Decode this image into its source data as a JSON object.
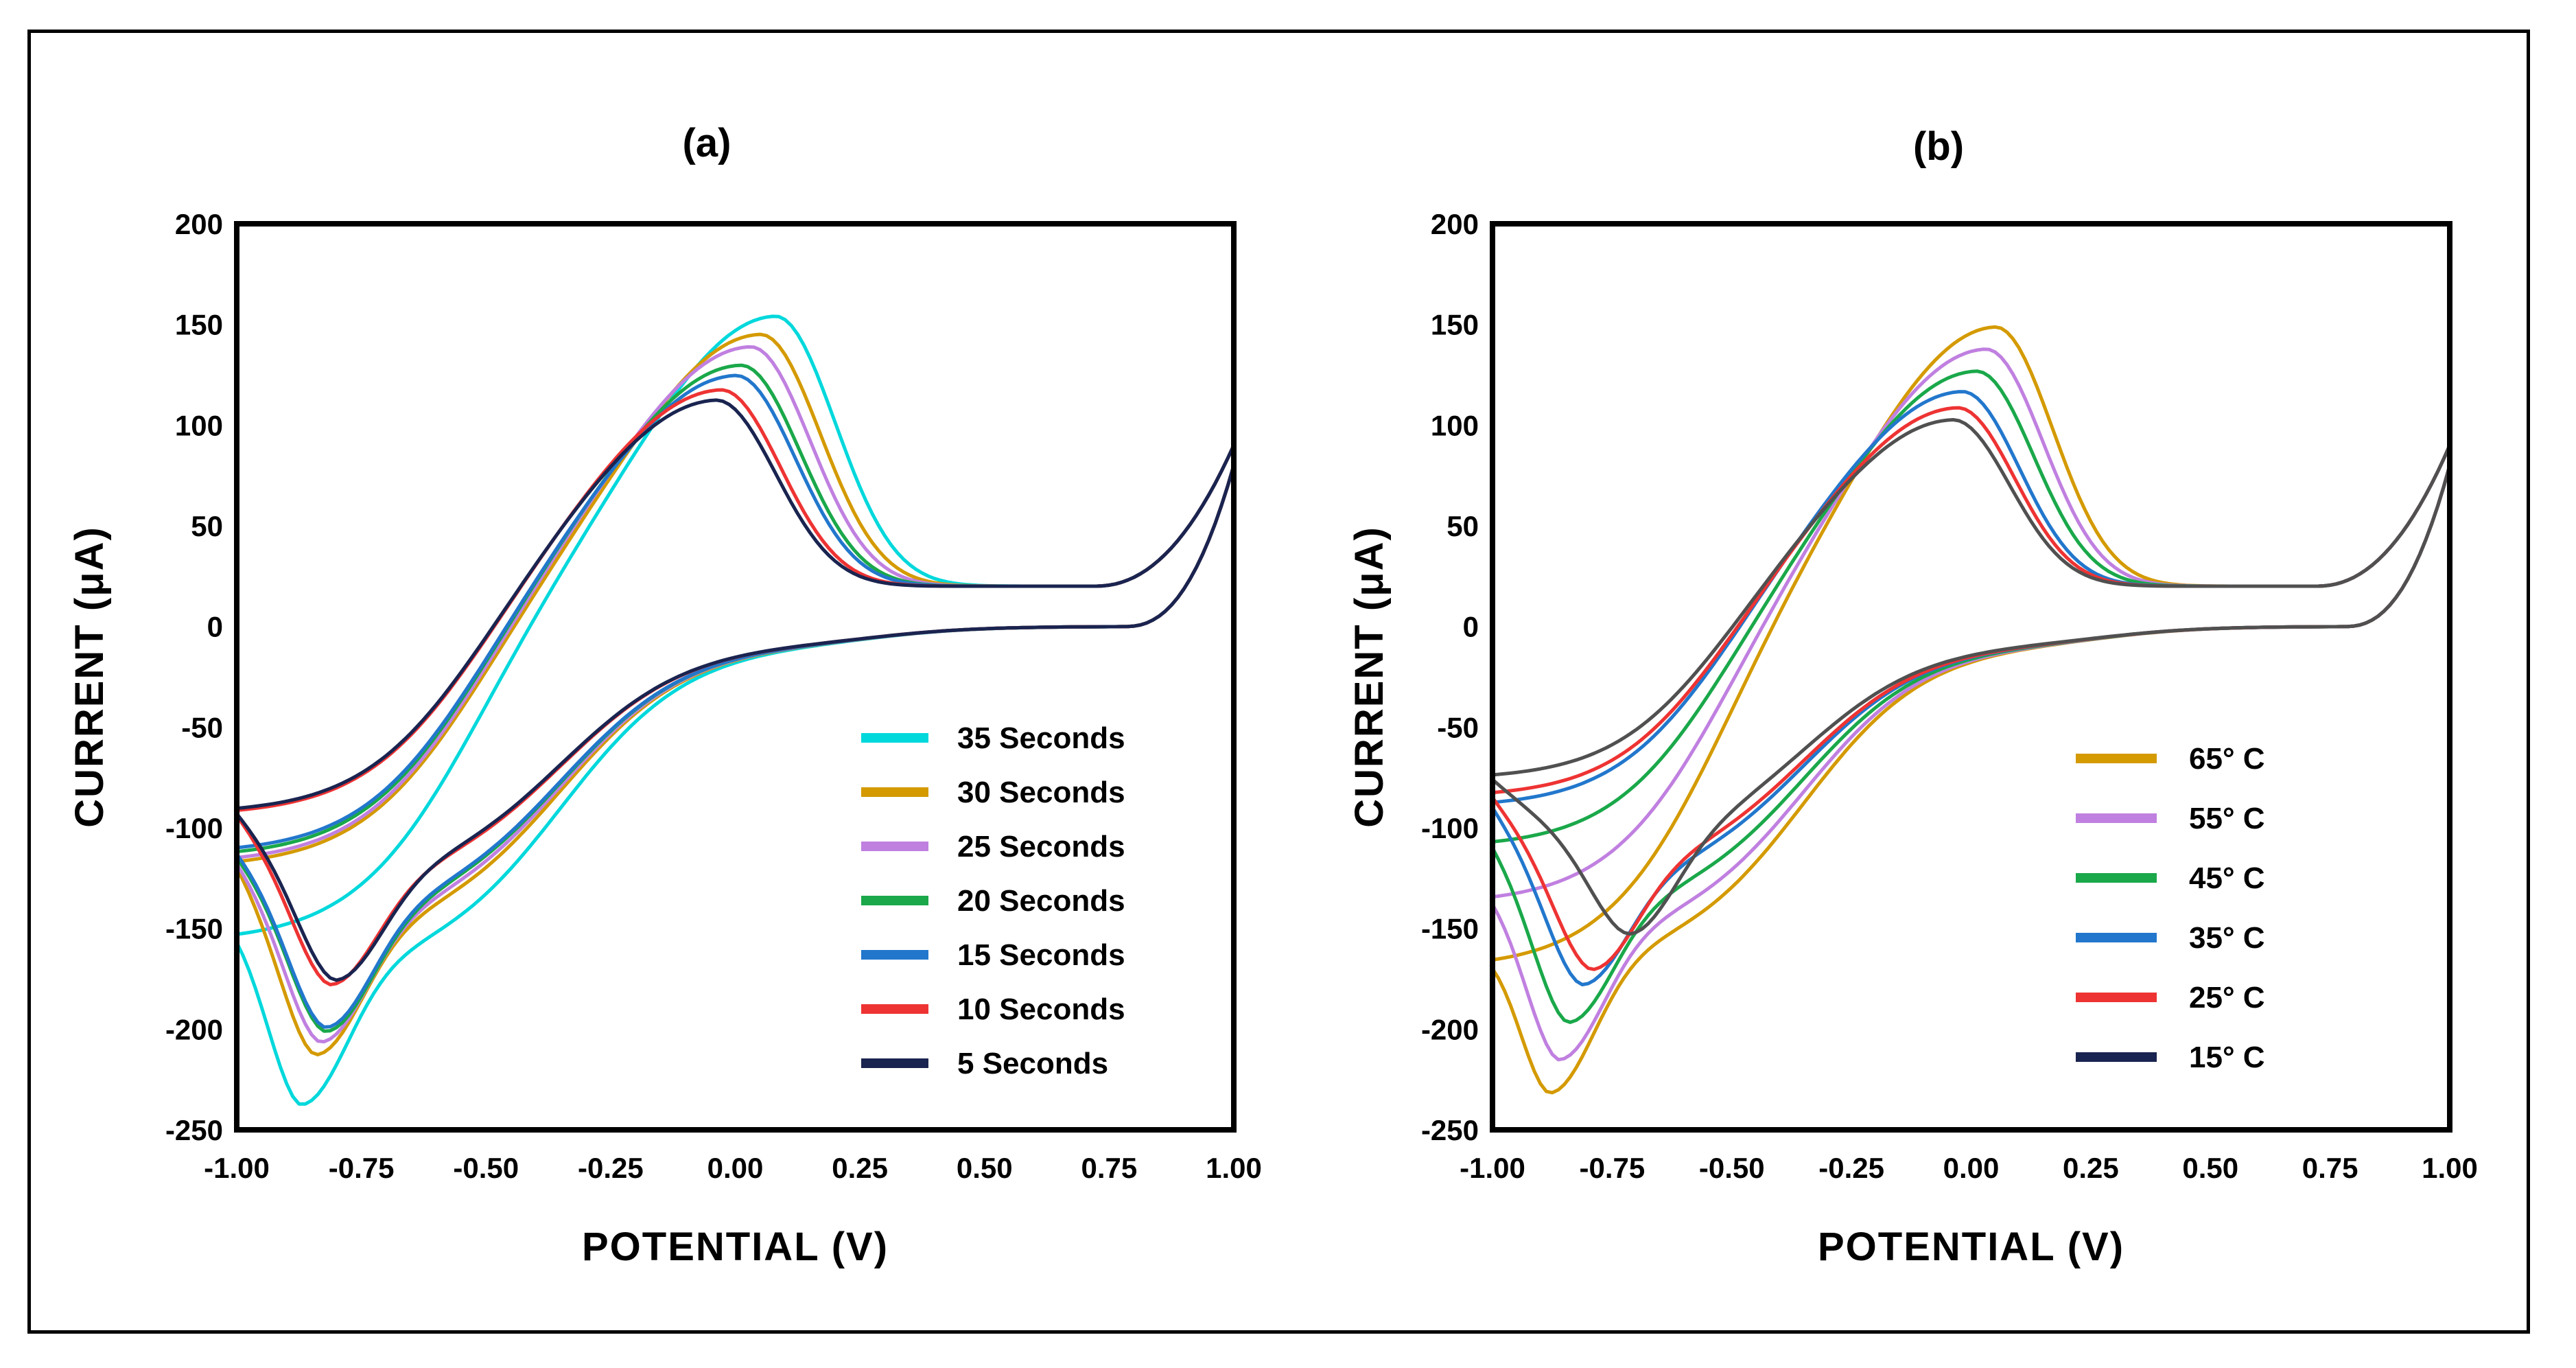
{
  "chart_data": [
    {
      "type": "line",
      "title": "(a)",
      "xlabel": "POTENTIAL (V)",
      "ylabel": "CURRENT (μA)",
      "xlim": [
        -1.0,
        1.0
      ],
      "ylim": [
        -250,
        200
      ],
      "xticks": [
        -1.0,
        -0.75,
        -0.5,
        -0.25,
        0.0,
        0.25,
        0.5,
        0.75,
        1.0
      ],
      "xtick_labels": [
        "-1.00",
        "-0.75",
        "-0.50",
        "-0.25",
        "0.00",
        "0.25",
        "0.50",
        "0.75",
        "1.00"
      ],
      "yticks": [
        200,
        150,
        100,
        50,
        0,
        -50,
        -100,
        -150,
        -200,
        -250
      ],
      "ytick_labels": [
        "200",
        "150",
        "100",
        "50",
        "0",
        "-50",
        "-100",
        "-150",
        "-200",
        "-250"
      ],
      "legend_position": "bottom-right",
      "series": [
        {
          "name": "35 Seconds",
          "color": "#00d8dc",
          "ipa": 155,
          "epa": 0.08,
          "ipc": -228,
          "epc": -0.87,
          "start": -157
        },
        {
          "name": "30 Seconds",
          "color": "#d49a00",
          "ipa": 146,
          "epa": 0.05,
          "ipc": -204,
          "epc": -0.84,
          "start": -120
        },
        {
          "name": "25 Seconds",
          "color": "#c080e0",
          "ipa": 140,
          "epa": 0.03,
          "ipc": -198,
          "epc": -0.83,
          "start": -118
        },
        {
          "name": "20 Seconds",
          "color": "#1aa84a",
          "ipa": 131,
          "epa": 0.01,
          "ipc": -193,
          "epc": -0.82,
          "start": -115
        },
        {
          "name": "15 Seconds",
          "color": "#2277cc",
          "ipa": 126,
          "epa": 0.0,
          "ipc": -191,
          "epc": -0.82,
          "start": -113
        },
        {
          "name": "10 Seconds",
          "color": "#ee3333",
          "ipa": 119,
          "epa": -0.03,
          "ipc": -170,
          "epc": -0.81,
          "start": -94
        },
        {
          "name": "5 Seconds",
          "color": "#1a2450",
          "ipa": 114,
          "epa": -0.04,
          "ipc": -168,
          "epc": -0.8,
          "start": -93
        }
      ]
    },
    {
      "type": "line",
      "title": "(b)",
      "xlabel": "POTENTIAL (V)",
      "ylabel": "CURRENT (μA)",
      "xlim": [
        -1.0,
        1.0
      ],
      "ylim": [
        -250,
        200
      ],
      "xticks": [
        -1.0,
        -0.75,
        -0.5,
        -0.25,
        0.0,
        0.25,
        0.5,
        0.75,
        1.0
      ],
      "xtick_labels": [
        "-1.00",
        "-0.75",
        "-0.50",
        "-0.25",
        "0.00",
        "0.25",
        "0.50",
        "0.75",
        "1.00"
      ],
      "yticks": [
        200,
        150,
        100,
        50,
        0,
        -50,
        -100,
        -150,
        -200,
        -250
      ],
      "ytick_labels": [
        "200",
        "150",
        "100",
        "50",
        "0",
        "-50",
        "-100",
        "-150",
        "-200",
        "-250"
      ],
      "legend_position": "bottom-right",
      "series": [
        {
          "name": "65° C",
          "color": "#d49a00",
          "ipa": 150,
          "epa": 0.05,
          "ipc": -222,
          "epc": -0.88,
          "start": -170
        },
        {
          "name": "55° C",
          "color": "#c080e0",
          "ipa": 139,
          "epa": 0.03,
          "ipc": -206,
          "epc": -0.86,
          "start": -138
        },
        {
          "name": "45° C",
          "color": "#1aa84a",
          "ipa": 128,
          "epa": 0.01,
          "ipc": -188,
          "epc": -0.84,
          "start": -110
        },
        {
          "name": "35° C",
          "color": "#2277cc",
          "ipa": 118,
          "epa": -0.02,
          "ipc": -170,
          "epc": -0.81,
          "start": -90
        },
        {
          "name": "25° C",
          "color": "#ee3333",
          "ipa": 110,
          "epa": -0.03,
          "ipc": -163,
          "epc": -0.79,
          "start": -85
        },
        {
          "name": "15° C",
          "color": "#505050",
          "legend_color": "#1a2450",
          "ipa": 104,
          "epa": -0.04,
          "ipc": -148,
          "epc": -0.71,
          "start": -76
        }
      ]
    }
  ]
}
